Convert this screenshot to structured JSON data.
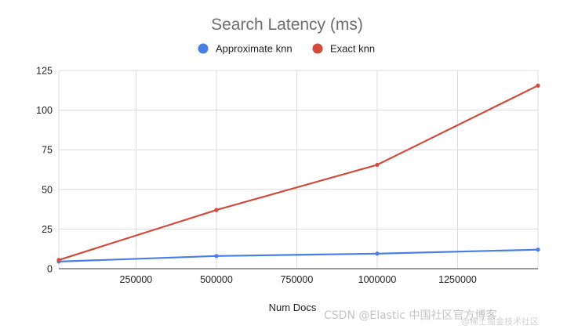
{
  "chart_data": {
    "type": "line",
    "title": "Search Latency (ms)",
    "xlabel": "Num Docs",
    "ylabel": "",
    "xlim": [
      10000,
      1500000
    ],
    "ylim": [
      0,
      125
    ],
    "x_ticks": [
      250000,
      500000,
      750000,
      1000000,
      1250000
    ],
    "x_tick_labels": [
      "250000",
      "500000",
      "750000",
      "1000000",
      "1250000"
    ],
    "y_ticks": [
      0,
      25,
      50,
      75,
      100,
      125
    ],
    "y_tick_labels": [
      "0",
      "25",
      "50",
      "75",
      "100",
      "125"
    ],
    "grid": true,
    "legend_position": "top",
    "series": [
      {
        "name": "Approximate knn",
        "color": "#4a7ee6",
        "x": [
          10000,
          500000,
          1000000,
          1500000
        ],
        "y": [
          4.5,
          8,
          9.5,
          12
        ]
      },
      {
        "name": "Exact knn",
        "color": "#d24b3c",
        "x": [
          10000,
          500000,
          1000000,
          1500000
        ],
        "y": [
          5.5,
          37,
          65.5,
          115.5
        ]
      }
    ]
  },
  "watermark": {
    "text": "CSDN @Elastic 中国社区官方博客",
    "sub": "@稀土掘金技术社区"
  }
}
